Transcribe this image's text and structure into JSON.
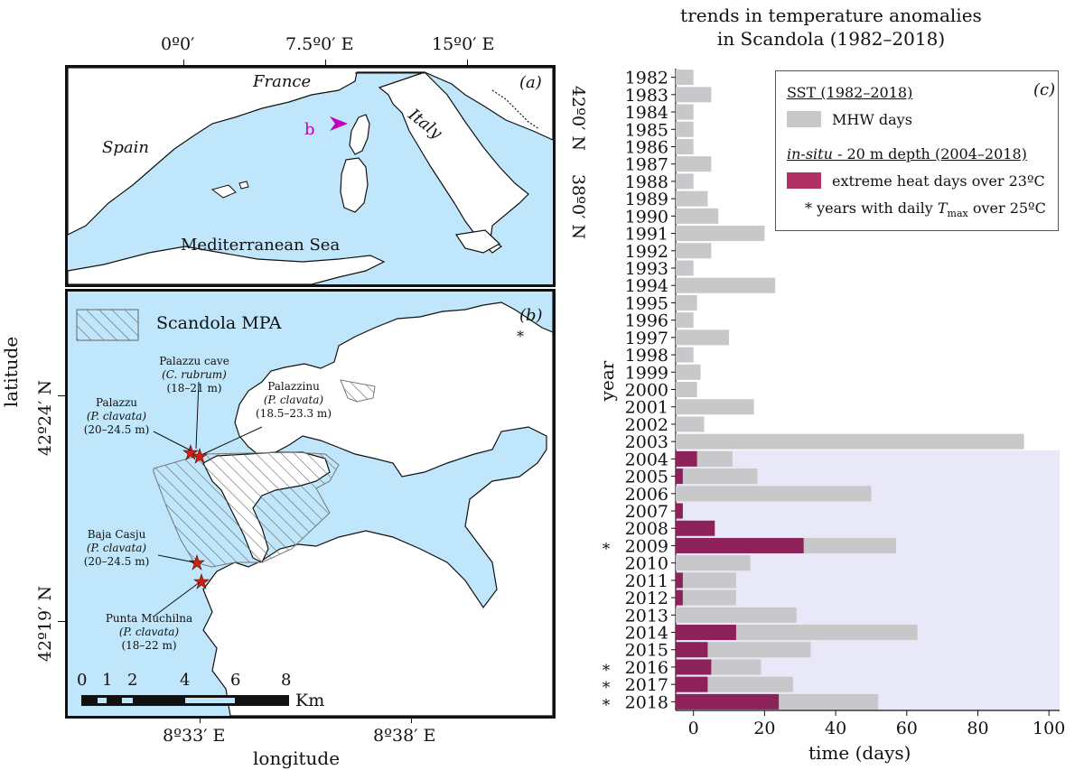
{
  "map": {
    "top_ticks": [
      "0º0′",
      "7.5º0′ E",
      "15º0′ E"
    ],
    "right_ticks": [
      "42º0′ N",
      "38º0′ N"
    ],
    "panel_a": {
      "label": "(a)",
      "country_labels": [
        "France",
        "Italy",
        "Spain"
      ],
      "sea_label": "Mediterranean Sea",
      "marker_label": "b"
    },
    "panel_b": {
      "label": "(b)",
      "legend_label": "Scandola MPA",
      "asterisk": "*",
      "sites": [
        {
          "name": "Palazzu cave",
          "species": "(C. rubrum)",
          "depth": "(18–21 m)"
        },
        {
          "name": "Palazzinu",
          "species": "(P. clavata)",
          "depth": "(18.5–23.3 m)"
        },
        {
          "name": "Palazzu",
          "species": "(P. clavata)",
          "depth": "(20–24.5 m)"
        },
        {
          "name": "Baja Casju",
          "species": "(P. clavata)",
          "depth": "(20–24.5 m)"
        },
        {
          "name": "Punta Muchilna",
          "species": "(P. clavata)",
          "depth": "(18–22 m)"
        }
      ],
      "left_ticks": [
        "42º24′ N",
        "42º19′ N"
      ],
      "bottom_ticks": [
        "8º33′ E",
        "8º38′ E"
      ],
      "scale_numbers": [
        "0",
        "1",
        "2",
        "4",
        "6",
        "8"
      ],
      "scale_unit": "Km",
      "xlabel": "longitude",
      "ylabel": "latitude"
    }
  },
  "chart_data": {
    "type": "bar",
    "orientation": "horizontal",
    "title": "trends in temperature anomalies in Scandola (1982–2018)",
    "title_lines": [
      "trends in temperature anomalies",
      "in Scandola (1982–2018)"
    ],
    "panel_label": "(c)",
    "xlabel": "time (days)",
    "ylabel": "year",
    "xlim": [
      -5,
      103
    ],
    "xticks": [
      0,
      20,
      40,
      60,
      80,
      100
    ],
    "categories": [
      "1982",
      "1983",
      "1984",
      "1985",
      "1986",
      "1987",
      "1988",
      "1989",
      "1990",
      "1991",
      "1992",
      "1993",
      "1994",
      "1995",
      "1996",
      "1997",
      "1998",
      "1999",
      "2000",
      "2001",
      "2002",
      "2003",
      "2004",
      "2005",
      "2006",
      "2007",
      "2008",
      "2009",
      "2010",
      "2011",
      "2012",
      "2013",
      "2014",
      "2015",
      "2016",
      "2017",
      "2018"
    ],
    "series": [
      {
        "name": "MHW days",
        "color": "#c8c7ca",
        "values": [
          0,
          5,
          0,
          0,
          0,
          5,
          0,
          4,
          7,
          20,
          5,
          0,
          23,
          1,
          0,
          10,
          0,
          2,
          1,
          17,
          3,
          93,
          11,
          18,
          50,
          -3,
          -3,
          57,
          16,
          12,
          12,
          29,
          63,
          33,
          19,
          28,
          52
        ]
      },
      {
        "name": "extreme heat days over 23ºC",
        "color": "#8c2259",
        "values": [
          null,
          null,
          null,
          null,
          null,
          null,
          null,
          null,
          null,
          null,
          null,
          null,
          null,
          null,
          null,
          null,
          null,
          null,
          null,
          null,
          null,
          null,
          1,
          -3,
          -5,
          -3,
          6,
          31,
          -5,
          -3,
          -3,
          -5,
          12,
          4,
          5,
          4,
          24
        ]
      }
    ],
    "starred_years": [
      "2009",
      "2016",
      "2017",
      "2018"
    ],
    "insitu_period_start": "2004",
    "shade_color": "#e8e8f8",
    "legend": {
      "heading1": "SST (1982–2018)",
      "item1": "MHW days",
      "heading2_italic": "in-situ",
      "heading2_rest": " - 20 m depth (2004–2018)",
      "item2": "extreme heat days over 23ºC",
      "note_prefix": "* years with daily ",
      "note_var": "T",
      "note_sub": "max",
      "note_suffix": " over 25ºC"
    },
    "grid": false
  }
}
